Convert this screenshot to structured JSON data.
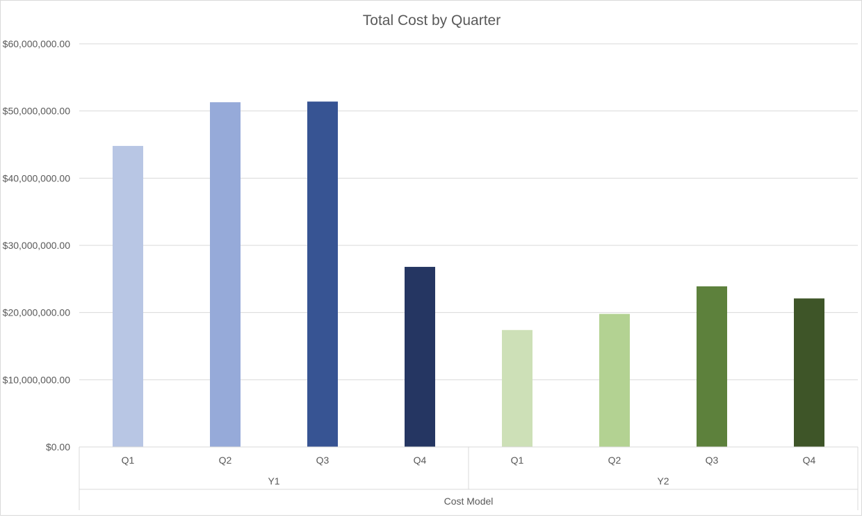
{
  "chart_data": {
    "type": "bar",
    "title": "Total Cost by Quarter",
    "xlabel": "Cost Model",
    "ylabel": "",
    "ylim": [
      0,
      60000000
    ],
    "yticks": [
      0,
      10000000,
      20000000,
      30000000,
      40000000,
      50000000,
      60000000
    ],
    "ytick_labels": [
      "$0.00",
      "$10,000,000.00",
      "$20,000,000.00",
      "$30,000,000.00",
      "$40,000,000.00",
      "$50,000,000.00",
      "$60,000,000.00"
    ],
    "grid": true,
    "legend": "none",
    "groups": [
      {
        "label": "Y1",
        "categories": [
          "Q1",
          "Q2",
          "Q3",
          "Q4"
        ]
      },
      {
        "label": "Y2",
        "categories": [
          "Q1",
          "Q2",
          "Q3",
          "Q4"
        ]
      }
    ],
    "categories": [
      "Q1",
      "Q2",
      "Q3",
      "Q4",
      "Q1",
      "Q2",
      "Q3",
      "Q4"
    ],
    "values": [
      44800000,
      51300000,
      51400000,
      26800000,
      17400000,
      19800000,
      23900000,
      22100000
    ],
    "colors": [
      "#b8c6e4",
      "#96aad9",
      "#375493",
      "#253662",
      "#cde0b7",
      "#b3d292",
      "#5d813c",
      "#3e5528"
    ]
  }
}
